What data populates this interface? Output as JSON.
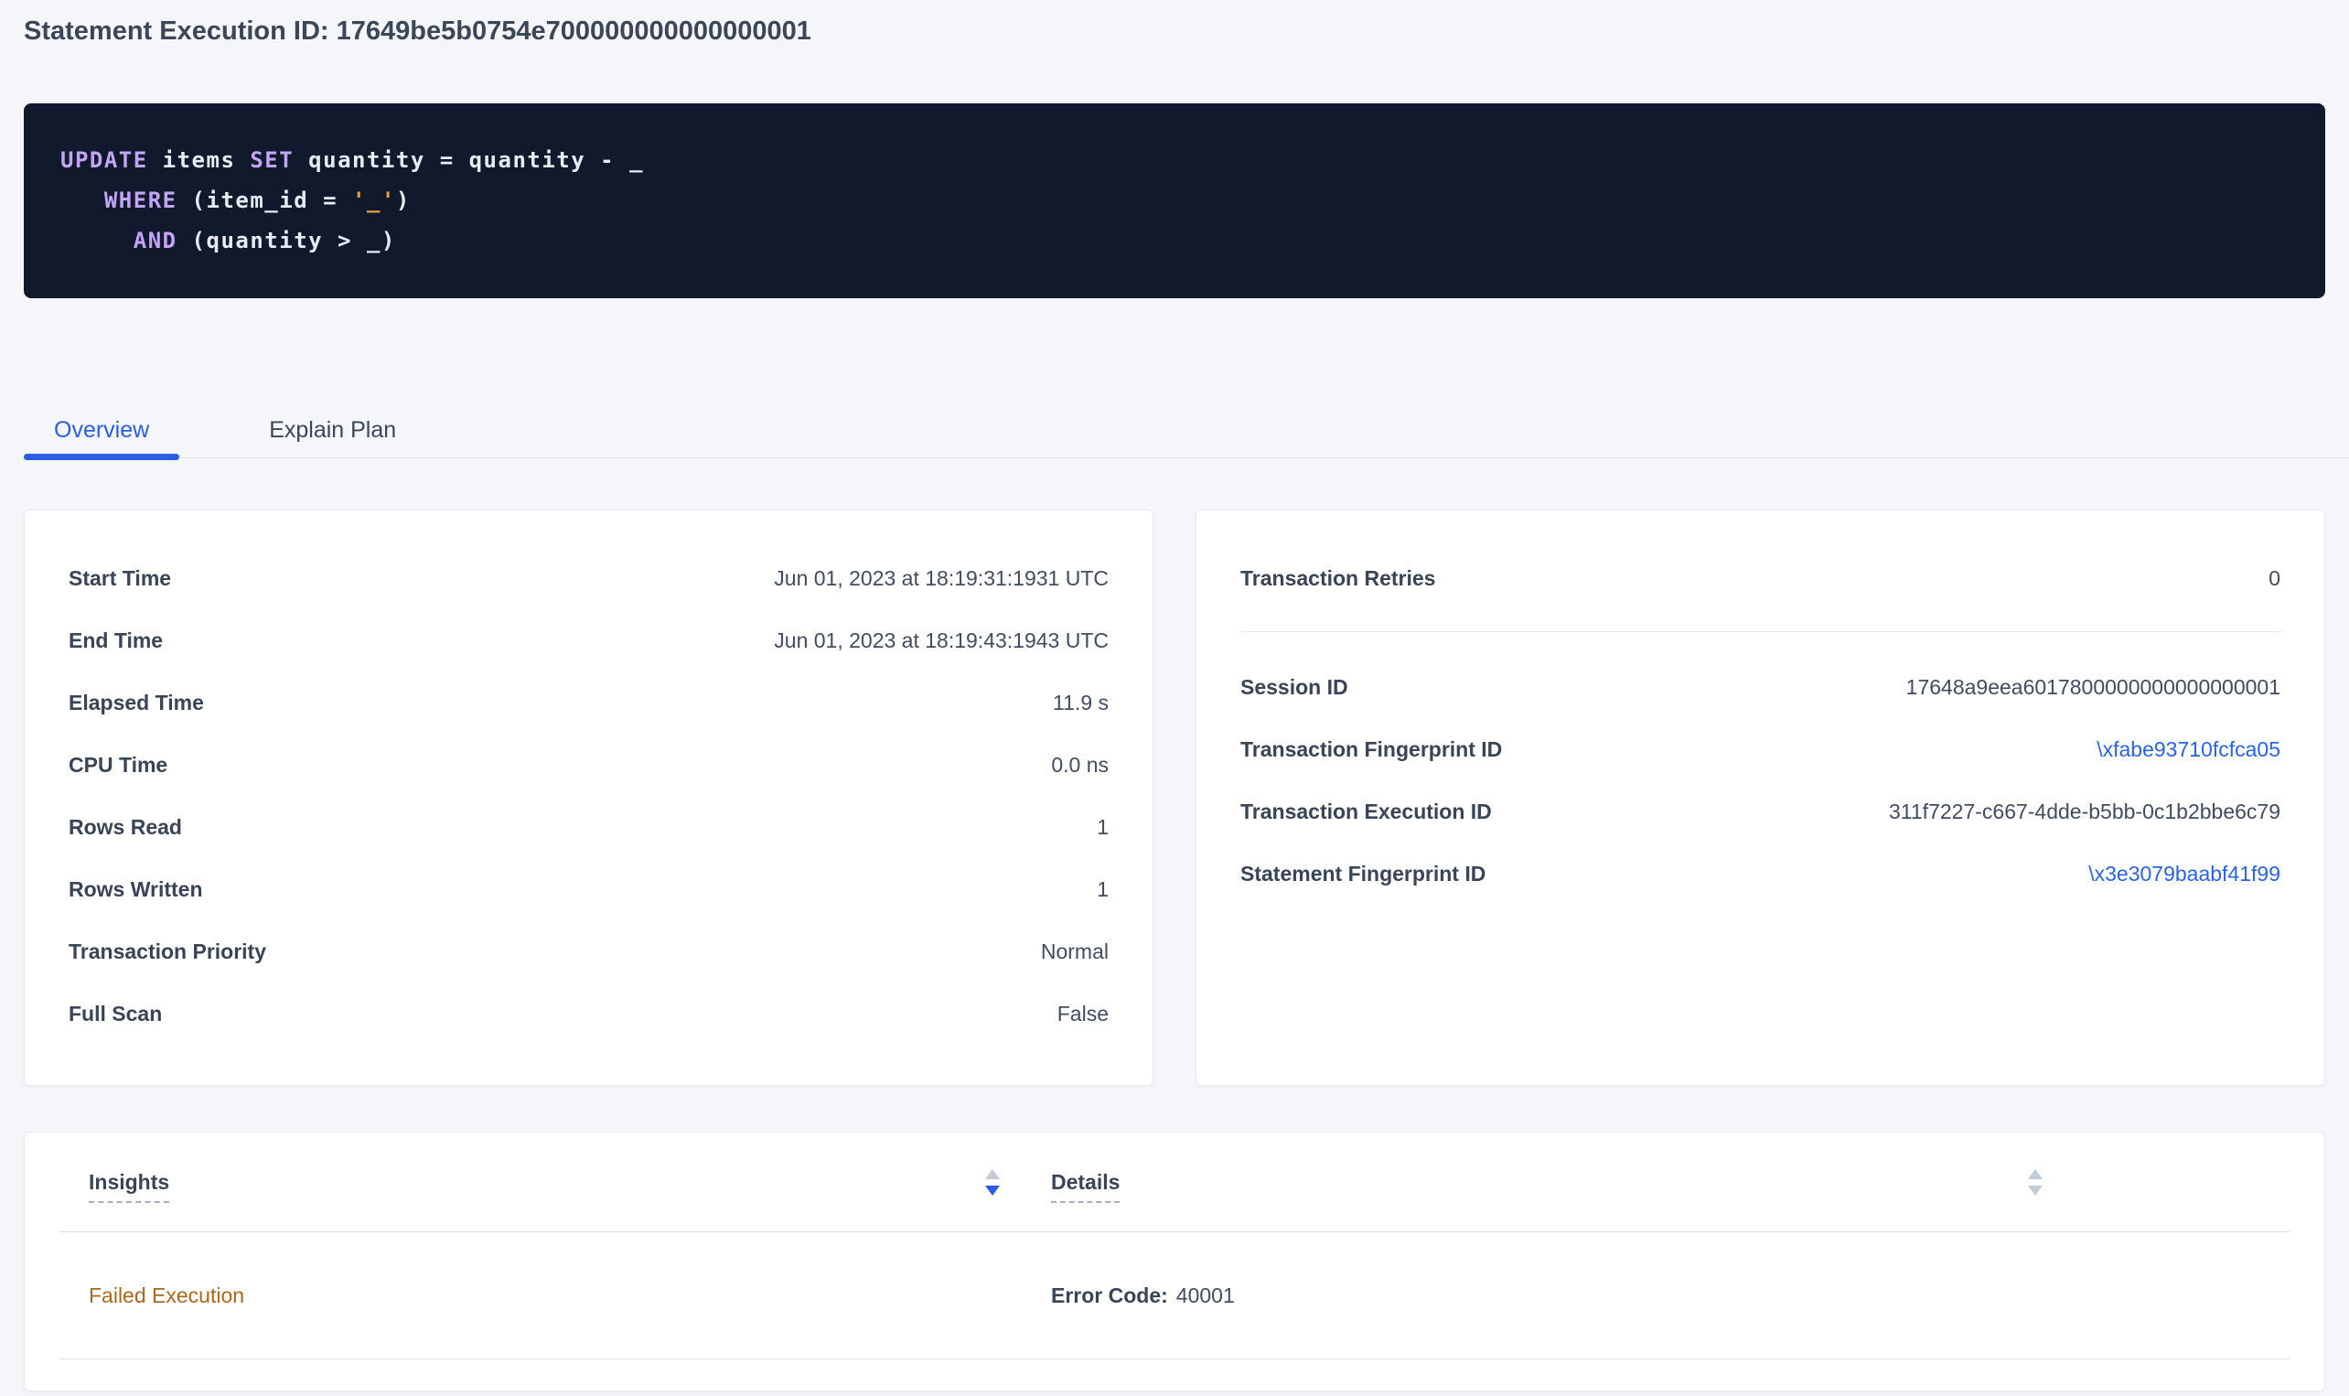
{
  "colors": {
    "accent_blue": "#2a5fe3",
    "link_blue": "#2a62e8",
    "insight_amber": "#ab671c",
    "sql_background": "#111a2d",
    "sql_keyword_purple": "#c4a5f5",
    "sql_string_orange": "#e9a13e"
  },
  "header": {
    "title": "Statement Execution ID: 17649be5b0754e700000000000000001"
  },
  "sql": {
    "lines": [
      {
        "tokens": [
          {
            "text": "UPDATE",
            "type": "kw"
          },
          {
            "text": " items ",
            "type": "pl"
          },
          {
            "text": "SET",
            "type": "kw"
          },
          {
            "text": " quantity = quantity - _",
            "type": "pl"
          }
        ]
      },
      {
        "tokens": [
          {
            "text": "   ",
            "type": "pl"
          },
          {
            "text": "WHERE",
            "type": "kw"
          },
          {
            "text": " (item_id = ",
            "type": "pl"
          },
          {
            "text": "'_'",
            "type": "str"
          },
          {
            "text": ")",
            "type": "pl"
          }
        ]
      },
      {
        "tokens": [
          {
            "text": "     ",
            "type": "pl"
          },
          {
            "text": "AND",
            "type": "kw"
          },
          {
            "text": " (quantity > _)",
            "type": "pl"
          }
        ]
      }
    ]
  },
  "tabs": [
    {
      "label": "Overview",
      "active": true
    },
    {
      "label": "Explain Plan",
      "active": false
    }
  ],
  "overview_card": {
    "rows": [
      {
        "label": "Start Time",
        "value": "Jun 01, 2023 at 18:19:31:1931 UTC"
      },
      {
        "label": "End Time",
        "value": "Jun 01, 2023 at 18:19:43:1943 UTC"
      },
      {
        "label": "Elapsed Time",
        "value": "11.9 s"
      },
      {
        "label": "CPU Time",
        "value": "0.0 ns"
      },
      {
        "label": "Rows Read",
        "value": "1"
      },
      {
        "label": "Rows Written",
        "value": "1"
      },
      {
        "label": "Transaction Priority",
        "value": "Normal"
      },
      {
        "label": "Full Scan",
        "value": "False"
      }
    ]
  },
  "ids_card": {
    "retries": {
      "label": "Transaction Retries",
      "value": "0"
    },
    "rows": [
      {
        "label": "Session ID",
        "value": "17648a9eea6017800000000000000001",
        "link": false
      },
      {
        "label": "Transaction Fingerprint ID",
        "value": "\\xfabe93710fcfca05",
        "link": true
      },
      {
        "label": "Transaction Execution ID",
        "value": "311f7227-c667-4dde-b5bb-0c1b2bbe6c79",
        "link": false
      },
      {
        "label": "Statement Fingerprint ID",
        "value": "\\x3e3079baabf41f99",
        "link": true
      }
    ]
  },
  "insights_table": {
    "columns": [
      {
        "label": "Insights",
        "sort": "desc"
      },
      {
        "label": "Details",
        "sort": "none"
      }
    ],
    "row": {
      "insight": "Failed Execution",
      "details_label": "Error Code:",
      "details_value": "40001"
    }
  }
}
